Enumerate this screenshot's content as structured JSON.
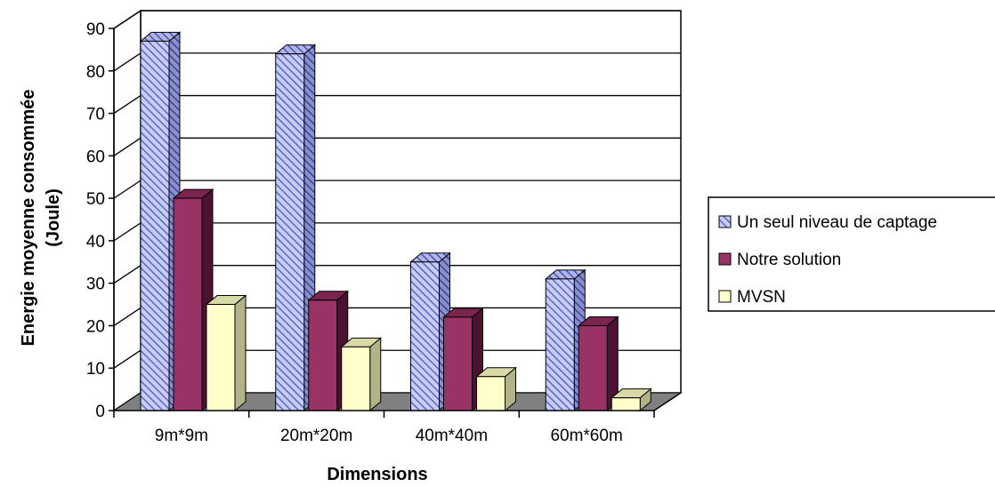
{
  "chart_data": {
    "type": "bar",
    "categories": [
      "9m*9m",
      "20m*20m",
      "40m*40m",
      "60m*60m"
    ],
    "series": [
      {
        "name": "Un seul niveau de captage",
        "values": [
          87,
          84,
          35,
          31
        ],
        "color": "#aab4f0"
      },
      {
        "name": "Notre solution",
        "values": [
          50,
          26,
          22,
          20
        ],
        "color": "#993366"
      },
      {
        "name": "MVSN",
        "values": [
          25,
          15,
          8,
          3
        ],
        "color": "#ffffcc"
      }
    ],
    "xlabel": "Dimensions",
    "ylabel_line1": "Energie moyenne consommée",
    "ylabel_line2": "(Joule)",
    "ylim": [
      0,
      90
    ],
    "yticks": [
      "0",
      "10",
      "20",
      "30",
      "40",
      "50",
      "60",
      "70",
      "80",
      "90"
    ],
    "grid": true,
    "legend_position": "right",
    "colors": {
      "floor": "#808080",
      "grid": "#000000",
      "pattern_stripe": "#5a66c8"
    }
  }
}
